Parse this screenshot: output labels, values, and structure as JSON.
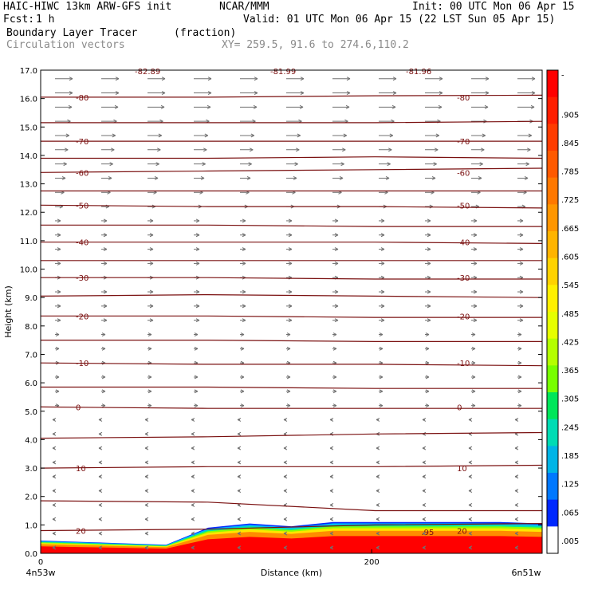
{
  "header": {
    "model": "HAIC-HIWC 13km ARW-GFS init",
    "org": "NCAR/MMM",
    "init": "Init: 00 UTC Mon 06 Apr 15",
    "fcst_label": "Fcst:",
    "fcst_value": "1 h",
    "valid": "Valid: 01 UTC Mon 06 Apr 15 (22 LST Sun 05 Apr 15)",
    "field": "Boundary Layer Tracer",
    "field_units": "(fraction)",
    "vectors": "Circulation vectors",
    "xy": "XY= 259.5, 91.6 to 274.6,110.2"
  },
  "chart_data": {
    "type": "heatmap",
    "ylabel": "Height (km)",
    "xlabel": "Distance (km)",
    "ylim": [
      0,
      17
    ],
    "xlim": [
      0,
      303
    ],
    "y_ticks": [
      "0.0",
      "1.0",
      "2.0",
      "3.0",
      "4.0",
      "5.0",
      "6.0",
      "7.0",
      "8.0",
      "9.0",
      "10.0",
      "11.0",
      "12.0",
      "13.0",
      "14.0",
      "15.0",
      "16.0",
      "17.0"
    ],
    "x_ticks": [
      {
        "value": 0,
        "label": "0"
      },
      {
        "value": 200,
        "label": "200"
      }
    ],
    "x_endpoints": {
      "left": "4n53w",
      "right": "6n51w"
    },
    "colorbar_labels": [
      "-",
      ".905",
      ".845",
      ".785",
      ".725",
      ".665",
      ".605",
      ".545",
      ".485",
      ".425",
      ".365",
      ".305",
      ".245",
      ".185",
      ".125",
      ".065",
      ".005"
    ],
    "colorbar_colors": [
      "#ff0000",
      "#ff1e00",
      "#ff3c00",
      "#ff5a00",
      "#ff7800",
      "#ff9600",
      "#ffb400",
      "#ffd200",
      "#fff000",
      "#e6ff00",
      "#b4ff00",
      "#78ff00",
      "#00e65a",
      "#00dcb4",
      "#00b4e6",
      "#0078ff",
      "#0028ff",
      "#ffffff"
    ],
    "contour_color": "#7a1010",
    "temperature_contours": [
      {
        "value": -80,
        "label": "-80",
        "heights": [
          16.05,
          16.05,
          16.1,
          16.12
        ]
      },
      {
        "value": -70,
        "label": "-70",
        "heights": [
          14.5,
          14.5,
          14.5,
          14.5
        ]
      },
      {
        "value": -60,
        "label": "-60",
        "heights": [
          13.4,
          13.45,
          13.5,
          13.55
        ]
      },
      {
        "value": -50,
        "label": "-50",
        "heights": [
          12.25,
          12.2,
          12.2,
          12.15
        ]
      },
      {
        "value": -40,
        "label": "-40",
        "heights": [
          10.95,
          10.95,
          10.95,
          10.9
        ]
      },
      {
        "value": -30,
        "label": "-30",
        "heights": [
          9.7,
          9.7,
          9.65,
          9.65
        ]
      },
      {
        "value": -20,
        "label": "-20",
        "heights": [
          8.35,
          8.35,
          8.3,
          8.3
        ]
      },
      {
        "value": -10,
        "label": "-10",
        "heights": [
          6.7,
          6.65,
          6.65,
          6.6
        ]
      },
      {
        "value": 0,
        "label": "0",
        "heights": [
          5.15,
          5.1,
          5.1,
          5.1
        ]
      },
      {
        "value": 10,
        "label": "10",
        "heights": [
          3.0,
          3.05,
          3.05,
          3.1
        ]
      },
      {
        "value": 20,
        "label": "20",
        "heights": [
          0.8,
          0.85,
          1.0,
          1.05
        ]
      }
    ],
    "extra_contours": [
      [
        15.15,
        15.15,
        15.15,
        15.2
      ],
      [
        13.9,
        13.9,
        13.95,
        13.9
      ],
      [
        12.75,
        12.75,
        12.75,
        12.75
      ],
      [
        11.55,
        11.55,
        11.5,
        11.5
      ],
      [
        10.3,
        10.3,
        10.3,
        10.3
      ],
      [
        9.05,
        9.1,
        9.05,
        9.0
      ],
      [
        7.5,
        7.5,
        7.45,
        7.45
      ],
      [
        5.85,
        5.85,
        5.8,
        5.8
      ],
      [
        4.05,
        4.1,
        4.2,
        4.25
      ],
      [
        1.85,
        1.8,
        1.5,
        1.5
      ]
    ],
    "top_labels": [
      "-82.89",
      "-81.99",
      "-81.96"
    ],
    "boundary_layer_top_km": [
      0.45,
      0.4,
      0.35,
      0.3,
      0.9,
      1.05,
      0.95,
      1.1,
      1.1,
      1.1,
      1.1,
      1.1,
      1.05
    ],
    "boundary_layer_label": ".95"
  }
}
